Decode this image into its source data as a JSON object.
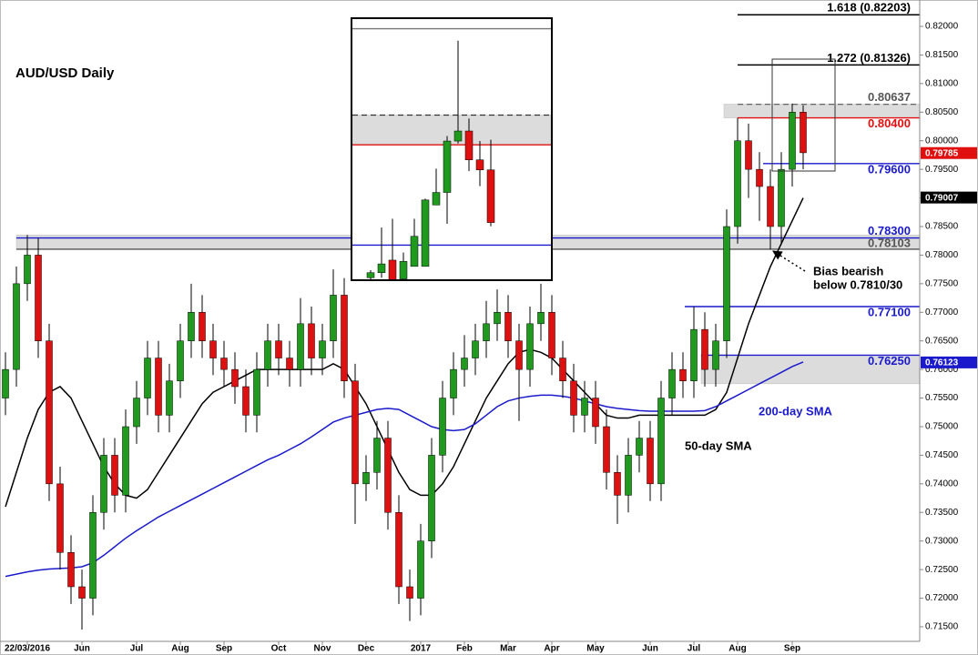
{
  "chart_data": [
    {
      "type": "candlestick",
      "title": "AUD/USD Daily",
      "categories": [
        null,
        null,
        "22/03/2016",
        null,
        null,
        null,
        null,
        "Jun",
        null,
        null,
        null,
        null,
        "Jul",
        null,
        null,
        null,
        "Aug",
        null,
        null,
        null,
        "Sep",
        null,
        null,
        null,
        null,
        "Oct",
        null,
        null,
        null,
        "Nov",
        null,
        null,
        null,
        "Dec",
        null,
        null,
        null,
        null,
        "2017",
        null,
        null,
        null,
        "Feb",
        null,
        null,
        null,
        "Mar",
        null,
        null,
        null,
        "Apr",
        null,
        null,
        null,
        "May",
        null,
        null,
        null,
        null,
        "Jun",
        null,
        null,
        null,
        "Jul",
        null,
        null,
        null,
        "Aug",
        null,
        null,
        null,
        null,
        "Sep",
        null
      ],
      "open": [
        0.755,
        0.76,
        0.775,
        0.78,
        0.765,
        0.74,
        0.728,
        0.722,
        0.72,
        0.735,
        0.745,
        0.738,
        0.75,
        0.755,
        0.762,
        0.752,
        0.758,
        0.765,
        0.77,
        0.765,
        0.762,
        0.76,
        0.757,
        0.752,
        0.76,
        0.765,
        0.762,
        0.76,
        0.768,
        0.762,
        0.765,
        0.773,
        0.758,
        0.74,
        0.742,
        0.748,
        0.735,
        0.722,
        0.72,
        0.73,
        0.745,
        0.755,
        0.76,
        0.762,
        0.765,
        0.768,
        0.77,
        0.765,
        0.76,
        0.768,
        0.77,
        0.762,
        0.758,
        0.752,
        0.755,
        0.75,
        0.742,
        0.738,
        0.745,
        0.748,
        0.74,
        0.755,
        0.76,
        0.758,
        0.767,
        0.76,
        0.765,
        0.785,
        0.8,
        0.795,
        0.792,
        0.785,
        0.795,
        0.805
      ],
      "high": [
        0.763,
        0.778,
        0.7835,
        0.783,
        0.768,
        0.743,
        0.731,
        0.725,
        0.738,
        0.748,
        0.748,
        0.753,
        0.758,
        0.765,
        0.765,
        0.761,
        0.768,
        0.775,
        0.773,
        0.768,
        0.765,
        0.763,
        0.76,
        0.763,
        0.768,
        0.768,
        0.765,
        0.7725,
        0.771,
        0.768,
        0.7775,
        0.776,
        0.761,
        0.745,
        0.751,
        0.751,
        0.738,
        0.725,
        0.733,
        0.748,
        0.758,
        0.763,
        0.766,
        0.768,
        0.772,
        0.774,
        0.773,
        0.768,
        0.771,
        0.775,
        0.773,
        0.765,
        0.761,
        0.758,
        0.758,
        0.753,
        0.745,
        0.748,
        0.751,
        0.751,
        0.758,
        0.763,
        0.763,
        0.771,
        0.77,
        0.768,
        0.788,
        0.804,
        0.803,
        0.798,
        0.795,
        0.798,
        0.8065,
        0.8062
      ],
      "low": [
        0.752,
        0.757,
        0.772,
        0.762,
        0.737,
        0.725,
        0.719,
        0.7145,
        0.717,
        0.732,
        0.735,
        0.735,
        0.747,
        0.752,
        0.749,
        0.749,
        0.755,
        0.762,
        0.762,
        0.759,
        0.757,
        0.754,
        0.749,
        0.749,
        0.757,
        0.759,
        0.757,
        0.757,
        0.759,
        0.759,
        0.762,
        0.755,
        0.733,
        0.737,
        0.739,
        0.732,
        0.719,
        0.716,
        0.717,
        0.727,
        0.742,
        0.752,
        0.757,
        0.759,
        0.762,
        0.765,
        0.762,
        0.751,
        0.757,
        0.765,
        0.759,
        0.755,
        0.749,
        0.749,
        0.747,
        0.739,
        0.733,
        0.735,
        0.742,
        0.737,
        0.737,
        0.752,
        0.755,
        0.755,
        0.757,
        0.757,
        0.762,
        0.782,
        0.79,
        0.786,
        0.781,
        0.782,
        0.792,
        0.795
      ],
      "close": [
        0.76,
        0.775,
        0.78,
        0.765,
        0.74,
        0.728,
        0.722,
        0.72,
        0.735,
        0.745,
        0.738,
        0.75,
        0.755,
        0.762,
        0.752,
        0.758,
        0.765,
        0.77,
        0.765,
        0.762,
        0.76,
        0.757,
        0.752,
        0.76,
        0.765,
        0.762,
        0.76,
        0.768,
        0.762,
        0.765,
        0.773,
        0.758,
        0.74,
        0.742,
        0.748,
        0.735,
        0.722,
        0.72,
        0.73,
        0.745,
        0.755,
        0.76,
        0.762,
        0.765,
        0.768,
        0.77,
        0.765,
        0.76,
        0.768,
        0.77,
        0.762,
        0.758,
        0.752,
        0.755,
        0.75,
        0.742,
        0.738,
        0.745,
        0.748,
        0.74,
        0.755,
        0.76,
        0.758,
        0.767,
        0.76,
        0.765,
        0.785,
        0.8,
        0.795,
        0.792,
        0.785,
        0.795,
        0.805,
        0.7979
      ],
      "up_color": "#1f9a1f",
      "down_color": "#e01010",
      "series": [
        {
          "name": "50-day SMA",
          "color": "#000000",
          "values": [
            0.736,
            0.742,
            0.748,
            0.753,
            0.756,
            0.757,
            0.755,
            0.751,
            0.747,
            0.743,
            0.74,
            0.738,
            0.7375,
            0.739,
            0.742,
            0.745,
            0.748,
            0.751,
            0.754,
            0.756,
            0.757,
            0.758,
            0.759,
            0.76,
            0.76,
            0.76,
            0.76,
            0.76,
            0.76,
            0.76,
            0.761,
            0.76,
            0.757,
            0.754,
            0.75,
            0.746,
            0.742,
            0.739,
            0.738,
            0.738,
            0.74,
            0.743,
            0.747,
            0.751,
            0.755,
            0.758,
            0.761,
            0.763,
            0.7635,
            0.763,
            0.762,
            0.76,
            0.758,
            0.756,
            0.754,
            0.752,
            0.7515,
            0.7515,
            0.752,
            0.752,
            0.752,
            0.752,
            0.752,
            0.752,
            0.752,
            0.753,
            0.756,
            0.762,
            0.768,
            0.773,
            0.778,
            0.782,
            0.786,
            0.79
          ]
        },
        {
          "name": "200-day SMA",
          "color": "#1a1acc",
          "values": [
            0.7238,
            0.7242,
            0.7246,
            0.7249,
            0.7251,
            0.7252,
            0.7253,
            0.7255,
            0.7262,
            0.7275,
            0.729,
            0.7305,
            0.7318,
            0.733,
            0.7342,
            0.7352,
            0.7362,
            0.7372,
            0.7382,
            0.7392,
            0.7402,
            0.7412,
            0.7422,
            0.7432,
            0.7442,
            0.745,
            0.746,
            0.747,
            0.7482,
            0.7495,
            0.7508,
            0.7515,
            0.752,
            0.7525,
            0.753,
            0.7532,
            0.753,
            0.752,
            0.751,
            0.75,
            0.7495,
            0.7493,
            0.7495,
            0.7505,
            0.752,
            0.7535,
            0.7545,
            0.755,
            0.7553,
            0.7555,
            0.7555,
            0.7553,
            0.755,
            0.7545,
            0.754,
            0.7535,
            0.7532,
            0.753,
            0.7528,
            0.7527,
            0.7527,
            0.7527,
            0.7527,
            0.7527,
            0.7528,
            0.7535,
            0.7545,
            0.7555,
            0.7565,
            0.7575,
            0.7585,
            0.7595,
            0.7605,
            0.7613
          ]
        }
      ],
      "levels": [
        {
          "value": 0.82203,
          "label": "1.618 (0.82203)",
          "color": "#000000",
          "style": "solid"
        },
        {
          "value": 0.81326,
          "label": "1.272 (0.81326)",
          "color": "#000000",
          "style": "solid"
        },
        {
          "value": 0.80637,
          "label": "0.80637",
          "color": "#555555",
          "style": "dashed"
        },
        {
          "value": 0.804,
          "label": "0.80400",
          "color": "#e01010",
          "style": "solid"
        },
        {
          "value": 0.796,
          "label": "0.79600",
          "color": "#1a1acc",
          "style": "solid"
        },
        {
          "value": 0.783,
          "label": "0.78300",
          "color": "#1a1acc",
          "style": "solid"
        },
        {
          "value": 0.78103,
          "label": "0.78103",
          "color": "#555555",
          "style": "solid"
        },
        {
          "value": 0.771,
          "label": "0.77100",
          "color": "#1a1acc",
          "style": "solid"
        },
        {
          "value": 0.7625,
          "label": "0.76250",
          "color": "#1a1acc",
          "style": "solid"
        }
      ],
      "zones": [
        [
          0.804,
          0.8064
        ],
        [
          0.781,
          0.7835
        ],
        [
          0.7575,
          0.7625
        ]
      ],
      "price_tags": [
        {
          "value": 0.79785,
          "color": "#e01010"
        },
        {
          "value": 0.79007,
          "color": "#000000"
        },
        {
          "value": 0.76123,
          "color": "#1a1acc"
        }
      ],
      "annotations": [
        "Bias bearish",
        "below 0.7810/30"
      ],
      "ylim": [
        0.71245,
        0.82382
      ],
      "yticks": [
        {
          "value": 0.715,
          "label": "0.71500"
        },
        {
          "value": 0.72,
          "label": "0.72000"
        },
        {
          "value": 0.725,
          "label": "0.72500"
        },
        {
          "value": 0.73,
          "label": "0.73000"
        },
        {
          "value": 0.735,
          "label": "0.73500"
        },
        {
          "value": 0.74,
          "label": "0.74000"
        },
        {
          "value": 0.745,
          "label": "0.74500"
        },
        {
          "value": 0.75,
          "label": "0.75000"
        },
        {
          "value": 0.755,
          "label": "0.75500"
        },
        {
          "value": 0.76,
          "label": "0.76000"
        },
        {
          "value": 0.765,
          "label": "0.76500"
        },
        {
          "value": 0.77,
          "label": "0.77000"
        },
        {
          "value": 0.775,
          "label": "0.77500"
        },
        {
          "value": 0.78,
          "label": "0.78000"
        },
        {
          "value": 0.785,
          "label": "0.78500"
        },
        {
          "value": 0.79,
          "label": "0.79000"
        },
        {
          "value": 0.795,
          "label": "0.79500"
        },
        {
          "value": 0.8,
          "label": "0.80000"
        },
        {
          "value": 0.805,
          "label": "0.80500"
        },
        {
          "value": 0.81,
          "label": "0.81000"
        },
        {
          "value": 0.815,
          "label": "0.81500"
        },
        {
          "value": 0.82,
          "label": "0.82000"
        }
      ],
      "grid": false
    },
    {
      "type": "candlestick",
      "categories": [
        null,
        null,
        null,
        null,
        null,
        null,
        null,
        null,
        null,
        null,
        null,
        null
      ],
      "open": [
        0.7934,
        0.7938,
        0.7948,
        0.7933,
        0.7943,
        0.7943,
        0.7992,
        0.8002,
        0.8043,
        0.8051,
        0.8028,
        0.802
      ],
      "high": [
        0.794,
        0.7974,
        0.7981,
        0.7954,
        0.7981,
        0.7997,
        0.8021,
        0.8047,
        0.8123,
        0.8061,
        0.8043,
        0.8044
      ],
      "low": [
        0.7932,
        0.7934,
        0.7932,
        0.7933,
        0.7943,
        0.7943,
        0.7992,
        0.7977,
        0.8041,
        0.8019,
        0.8007,
        0.7975
      ],
      "close": [
        0.7938,
        0.7945,
        0.7932,
        0.7947,
        0.7967,
        0.7996,
        0.8002,
        0.8043,
        0.8051,
        0.8028,
        0.802,
        0.7978
      ],
      "up_color": "#1f9a1f",
      "down_color": "#e01010",
      "levels": [
        {
          "value": 0.81326,
          "color": "#777777",
          "style": "solid"
        },
        {
          "value": 0.80637,
          "color": "#333333",
          "style": "dashed"
        },
        {
          "value": 0.804,
          "color": "#e01010",
          "style": "solid"
        },
        {
          "value": 0.796,
          "color": "#1a1acc",
          "style": "solid"
        }
      ],
      "zones": [
        [
          0.804,
          0.80637
        ]
      ],
      "ylim": [
        0.7932,
        0.8141
      ]
    }
  ]
}
